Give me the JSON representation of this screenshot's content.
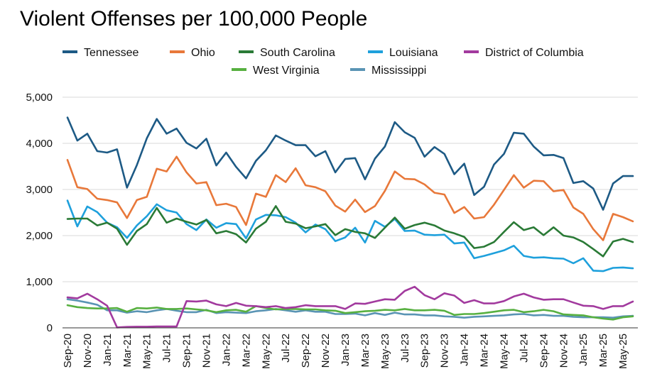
{
  "chart_data": {
    "type": "line",
    "title": "Violent Offenses per 100,000 People",
    "xlabel": "",
    "ylabel": "",
    "ylim": [
      0,
      5000
    ],
    "yticks": [
      0,
      1000,
      2000,
      3000,
      4000,
      5000
    ],
    "ytick_labels": [
      "0",
      "1,000",
      "2,000",
      "3,000",
      "4,000",
      "5,000"
    ],
    "legend_position": "top",
    "grid": "horizontal",
    "x": [
      "Sep-20",
      "Oct-20",
      "Nov-20",
      "Dec-20",
      "Jan-21",
      "Feb-21",
      "Mar-21",
      "Apr-21",
      "May-21",
      "Jun-21",
      "Jul-21",
      "Aug-21",
      "Sep-21",
      "Oct-21",
      "Nov-21",
      "Dec-21",
      "Jan-22",
      "Feb-22",
      "Mar-22",
      "Apr-22",
      "May-22",
      "Jun-22",
      "Jul-22",
      "Aug-22",
      "Sep-22",
      "Oct-22",
      "Nov-22",
      "Dec-22",
      "Jan-23",
      "Feb-23",
      "Mar-23",
      "Apr-23",
      "May-23",
      "Jun-23",
      "Jul-23",
      "Aug-23",
      "Sep-23",
      "Oct-23",
      "Nov-23",
      "Dec-23",
      "Jan-24",
      "Feb-24",
      "Mar-24",
      "Apr-24",
      "May-24",
      "Jun-24",
      "Jul-24",
      "Aug-24",
      "Sep-24",
      "Oct-24",
      "Nov-24",
      "Dec-24",
      "Jan-25",
      "Feb-25",
      "Mar-25",
      "Apr-25",
      "May-25",
      "Jun-25"
    ],
    "xtick_labels": [
      "Sep-20",
      "Nov-20",
      "Jan-21",
      "Mar-21",
      "May-21",
      "Jul-21",
      "Sep-21",
      "Nov-21",
      "Jan-22",
      "Mar-22",
      "May-22",
      "Jul-22",
      "Sep-22",
      "Nov-22",
      "Jan-23",
      "Mar-23",
      "May-23",
      "Jul-23",
      "Sep-23",
      "Nov-23",
      "Jan-24",
      "Mar-24",
      "May-24",
      "Jul-24",
      "Sep-24",
      "Nov-24",
      "Jan-25",
      "Mar-25",
      "May-25"
    ],
    "series": [
      {
        "name": "Tennessee",
        "color": "#1d5a85",
        "values": [
          4560,
          4060,
          4210,
          3830,
          3800,
          3870,
          3040,
          3530,
          4110,
          4530,
          4210,
          4320,
          4010,
          3890,
          4100,
          3520,
          3800,
          3490,
          3240,
          3620,
          3850,
          4170,
          4060,
          3960,
          3960,
          3720,
          3830,
          3370,
          3660,
          3680,
          3220,
          3670,
          3930,
          4460,
          4240,
          4120,
          3710,
          3920,
          3770,
          3330,
          3560,
          2880,
          3060,
          3540,
          3770,
          4230,
          4210,
          3930,
          3740,
          3750,
          3680,
          3140,
          3180,
          3020,
          2560,
          3130,
          3290,
          3290
        ]
      },
      {
        "name": "Ohio",
        "color": "#e8783a",
        "values": [
          3640,
          3050,
          3010,
          2800,
          2770,
          2720,
          2380,
          2770,
          2840,
          3450,
          3390,
          3710,
          3370,
          3130,
          3160,
          2660,
          2690,
          2620,
          2230,
          2910,
          2840,
          3310,
          3160,
          3460,
          3090,
          3050,
          2960,
          2650,
          2520,
          2780,
          2510,
          2640,
          2970,
          3390,
          3230,
          3220,
          3110,
          2930,
          2890,
          2490,
          2620,
          2370,
          2400,
          2670,
          2990,
          3310,
          3040,
          3190,
          3180,
          2960,
          2990,
          2610,
          2470,
          2140,
          1900,
          2470,
          2400,
          2310
        ]
      },
      {
        "name": "South Carolina",
        "color": "#2a7a36",
        "values": [
          2360,
          2370,
          2370,
          2220,
          2280,
          2150,
          1800,
          2100,
          2250,
          2600,
          2280,
          2370,
          2300,
          2240,
          2340,
          2050,
          2100,
          2030,
          1850,
          2150,
          2300,
          2640,
          2300,
          2260,
          2160,
          2200,
          2250,
          2010,
          2140,
          2080,
          2050,
          1950,
          2170,
          2390,
          2150,
          2230,
          2280,
          2220,
          2110,
          2050,
          1970,
          1730,
          1760,
          1860,
          2080,
          2290,
          2120,
          2180,
          2010,
          2180,
          2000,
          1960,
          1860,
          1710,
          1550,
          1870,
          1930,
          1860
        ]
      },
      {
        "name": "Louisiana",
        "color": "#1ea0dc",
        "values": [
          2760,
          2200,
          2630,
          2510,
          2280,
          2180,
          1950,
          2220,
          2420,
          2680,
          2550,
          2500,
          2250,
          2120,
          2350,
          2170,
          2270,
          2250,
          1940,
          2350,
          2450,
          2440,
          2400,
          2280,
          2070,
          2240,
          2140,
          1880,
          1960,
          2170,
          1850,
          2320,
          2190,
          2360,
          2100,
          2110,
          2020,
          2010,
          2020,
          1830,
          1850,
          1510,
          1560,
          1620,
          1680,
          1780,
          1560,
          1520,
          1530,
          1510,
          1500,
          1400,
          1510,
          1240,
          1230,
          1300,
          1310,
          1290
        ]
      },
      {
        "name": "District of Columbia",
        "color": "#a23a9e",
        "values": [
          660,
          640,
          740,
          620,
          480,
          10,
          20,
          25,
          25,
          30,
          30,
          30,
          580,
          570,
          590,
          510,
          470,
          540,
          480,
          470,
          450,
          470,
          430,
          450,
          490,
          470,
          470,
          470,
          410,
          530,
          520,
          570,
          620,
          610,
          800,
          890,
          710,
          620,
          750,
          700,
          540,
          600,
          530,
          530,
          580,
          680,
          740,
          660,
          610,
          620,
          620,
          550,
          480,
          470,
          410,
          470,
          470,
          570
        ]
      },
      {
        "name": "West Virginia",
        "color": "#57b040",
        "values": [
          490,
          450,
          430,
          420,
          420,
          430,
          350,
          430,
          420,
          440,
          410,
          410,
          420,
          400,
          380,
          340,
          380,
          390,
          350,
          470,
          430,
          400,
          410,
          410,
          400,
          400,
          380,
          370,
          320,
          340,
          360,
          370,
          390,
          380,
          410,
          380,
          380,
          390,
          370,
          280,
          300,
          300,
          320,
          350,
          380,
          390,
          340,
          360,
          390,
          360,
          290,
          280,
          270,
          230,
          200,
          180,
          230,
          250
        ]
      },
      {
        "name": "Mississippi",
        "color": "#5a94b4",
        "values": [
          620,
          590,
          550,
          500,
          380,
          380,
          330,
          360,
          340,
          380,
          410,
          370,
          340,
          340,
          390,
          320,
          340,
          330,
          320,
          360,
          380,
          410,
          380,
          350,
          380,
          350,
          350,
          300,
          300,
          310,
          270,
          320,
          280,
          330,
          290,
          290,
          270,
          270,
          250,
          240,
          220,
          240,
          250,
          260,
          270,
          290,
          300,
          270,
          280,
          260,
          260,
          240,
          230,
          230,
          230,
          220,
          250,
          260
        ]
      }
    ]
  }
}
